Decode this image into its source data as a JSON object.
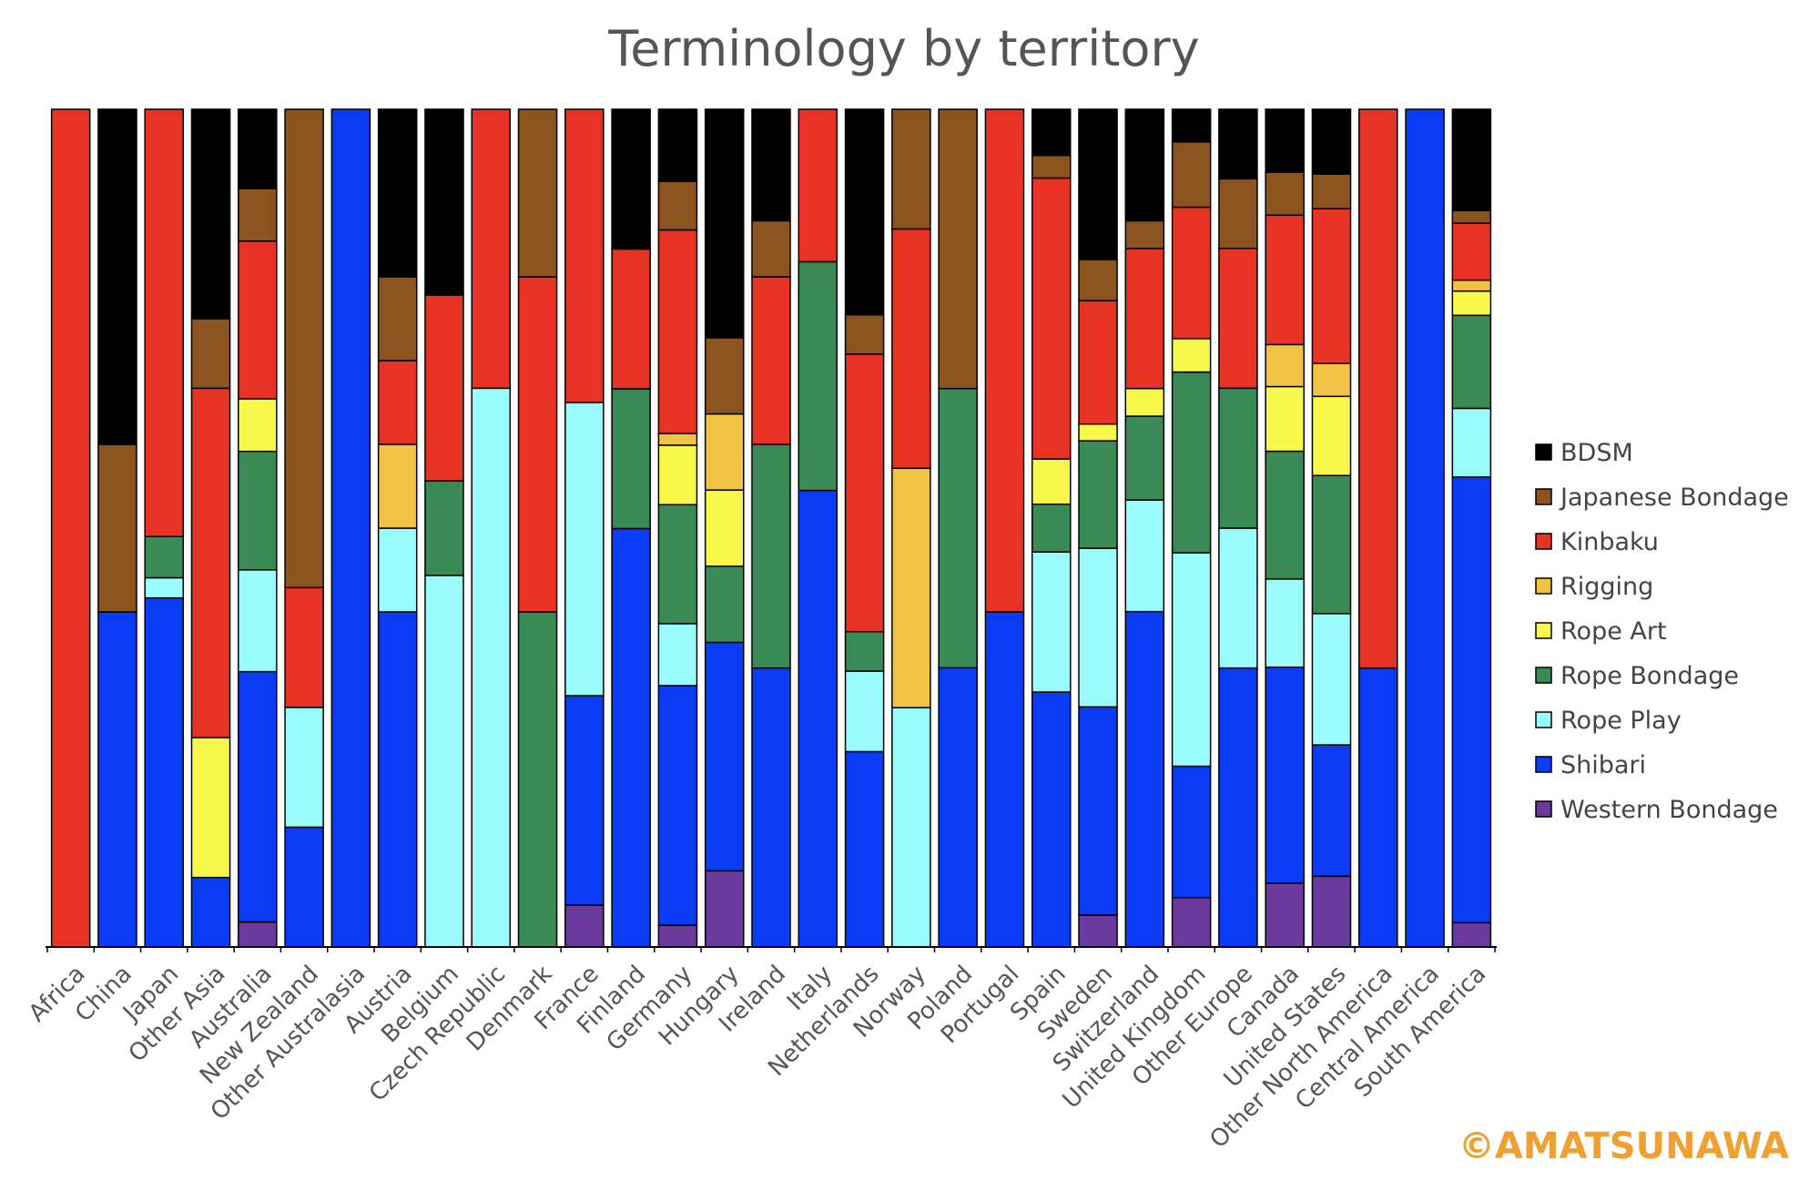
{
  "chart_data": {
    "type": "bar",
    "stacked": true,
    "percent_stacked": true,
    "title": "Terminology by territory",
    "xlabel": "",
    "ylabel": "",
    "ylim": [
      0,
      100
    ],
    "grid": false,
    "legend_position": "right",
    "categories": [
      "Africa",
      "China",
      "Japan",
      "Other Asia",
      "Australia",
      "New Zealand",
      "Other Australasia",
      "Austria",
      "Belgium",
      "Czech Republic",
      "Denmark",
      "France",
      "Finland",
      "Germany",
      "Hungary",
      "Ireland",
      "Italy",
      "Netherlands",
      "Norway",
      "Poland",
      "Portugal",
      "Spain",
      "Sweden",
      "Switzerland",
      "United Kingdom",
      "Other Europe",
      "Canada",
      "United States",
      "Other North America",
      "Central America",
      "South America"
    ],
    "series": [
      {
        "name": "Western Bondage",
        "color": "#6a3a9e",
        "values": [
          0,
          0,
          0,
          0,
          3,
          0,
          0,
          0,
          0,
          0,
          0,
          5,
          0,
          2.6,
          9.1,
          0,
          0,
          0,
          0,
          0,
          0,
          0,
          3.8,
          0,
          5.9,
          0,
          7.6,
          8.4,
          0,
          0,
          2.9
        ]
      },
      {
        "name": "Shibari",
        "color": "#0a3cf5",
        "values": [
          0,
          40,
          41.5,
          8.3,
          30,
          14.3,
          100,
          40,
          0,
          0,
          0,
          25,
          50,
          28.6,
          27.3,
          33.3,
          54.5,
          23.3,
          0,
          33.3,
          40,
          30.4,
          24.8,
          40,
          15.7,
          33.3,
          25.7,
          15.6,
          33.3,
          100,
          53.2
        ]
      },
      {
        "name": "Rope Play",
        "color": "#99fbfb",
        "values": [
          0,
          0,
          2.4,
          0,
          12.2,
          14.3,
          0,
          10,
          44.4,
          66.7,
          0,
          35,
          0,
          7.4,
          0,
          0,
          0,
          9.6,
          28.6,
          0,
          0,
          16.7,
          18.9,
          13.3,
          25.5,
          16.7,
          10.5,
          15.6,
          0,
          0,
          8.2
        ]
      },
      {
        "name": "Rope Bondage",
        "color": "#3a8a55",
        "values": [
          0,
          0,
          4.9,
          0,
          14.2,
          0,
          0,
          0,
          11.3,
          0,
          40,
          0,
          16.7,
          14.2,
          9.1,
          26.7,
          27.3,
          4.7,
          0,
          33.3,
          0,
          5.7,
          12.8,
          10,
          21.6,
          16.7,
          15.2,
          16.4,
          0,
          0,
          11.1
        ]
      },
      {
        "name": "Rope Art",
        "color": "#f8f84a",
        "values": [
          0,
          0,
          0,
          16.7,
          6.3,
          0,
          0,
          0,
          0,
          0,
          0,
          0,
          0,
          7.1,
          9.1,
          0,
          0,
          0,
          0,
          0,
          0,
          5.4,
          2,
          3.3,
          4,
          0,
          7.7,
          9.4,
          0,
          0,
          2.9
        ]
      },
      {
        "name": "Rigging",
        "color": "#f2c245",
        "values": [
          0,
          0,
          0,
          0,
          0,
          0,
          0,
          10,
          0,
          0,
          0,
          0,
          0,
          1.4,
          9.1,
          0,
          0,
          0,
          28.6,
          0,
          0,
          0,
          0,
          0,
          0,
          0,
          5,
          3.9,
          0,
          0,
          1.3
        ]
      },
      {
        "name": "Kinbaku",
        "color": "#e63324",
        "values": [
          100,
          0,
          50.8,
          41.7,
          18.9,
          14.3,
          0,
          10,
          22.2,
          33.3,
          40,
          35,
          16.7,
          24.3,
          0,
          20,
          18.2,
          33.1,
          28.6,
          0,
          60,
          33.5,
          14.7,
          16.7,
          15.7,
          16.7,
          15.4,
          18.4,
          66.7,
          0,
          6.8
        ]
      },
      {
        "name": "Japanese Bondage",
        "color": "#8b541e",
        "values": [
          0,
          20,
          0,
          8.3,
          6.3,
          57.1,
          0,
          10,
          0,
          0,
          20,
          0,
          0,
          5.8,
          9.1,
          6.7,
          0,
          4.7,
          14.3,
          33.3,
          0,
          2.7,
          4.9,
          3.3,
          7.8,
          8.3,
          5.1,
          4.1,
          0,
          0,
          1.5
        ]
      },
      {
        "name": "BDSM",
        "color": "#000000",
        "values": [
          0,
          40,
          0,
          25,
          9.5,
          0,
          0,
          20,
          22.2,
          0,
          0,
          0,
          16.7,
          8.6,
          27.3,
          13.3,
          0,
          24.5,
          0,
          0,
          0,
          5.5,
          17.9,
          13.3,
          3.9,
          8.3,
          7.5,
          7.7,
          0,
          0,
          12.1
        ]
      }
    ],
    "legend_order": [
      "BDSM",
      "Japanese Bondage",
      "Kinbaku",
      "Rigging",
      "Rope Art",
      "Rope Bondage",
      "Rope Play",
      "Shibari",
      "Western Bondage"
    ]
  },
  "watermark": "©AMATSUNAWA",
  "colors": {
    "title": "#555555",
    "tick_label": "#555555",
    "legend_text": "#444444",
    "watermark": "#f0a030",
    "axis": "#000000",
    "bar_outline": "#000000"
  }
}
